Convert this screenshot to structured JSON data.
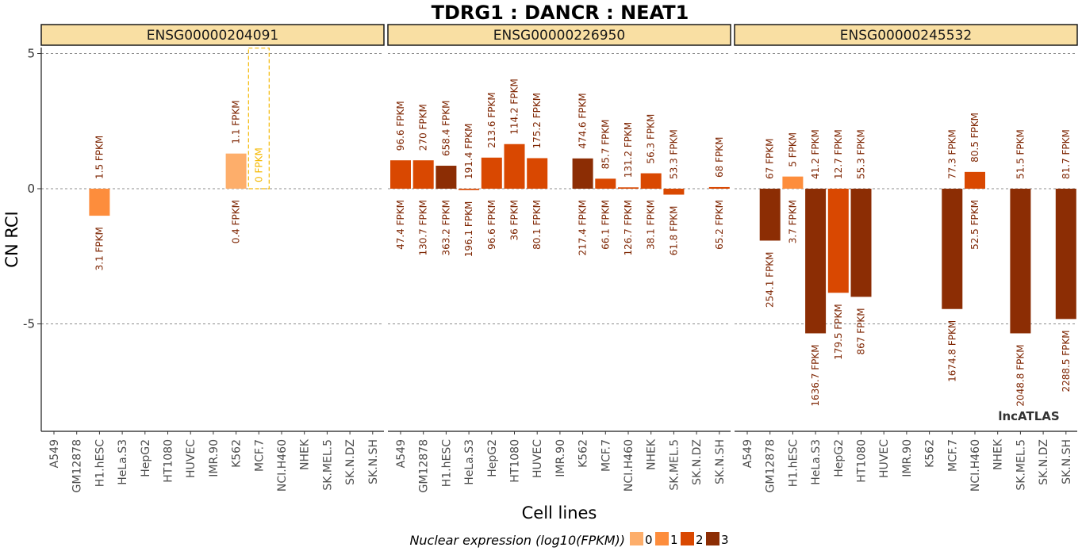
{
  "chart_data": {
    "type": "bar",
    "title": "TDRG1 : DANCR : NEAT1",
    "xlabel": "Cell lines",
    "ylabel": "CN RCI",
    "ylim": [
      -9,
      5.2
    ],
    "yticks": [
      5,
      0,
      -5
    ],
    "ytick_labels": [
      "5",
      "0",
      "-5"
    ],
    "grid_lines_at": [
      5,
      0,
      -5
    ],
    "categories": [
      "A549",
      "GM12878",
      "H1.hESC",
      "HeLa.S3",
      "HepG2",
      "HT1080",
      "HUVEC",
      "IMR.90",
      "K562",
      "MCF.7",
      "NCI.H460",
      "NHEK",
      "SK.MEL.5",
      "SK.N.DZ",
      "SK.N.SH"
    ],
    "legend": {
      "title": "Nuclear expression (log10(FPKM))",
      "position": "bottom",
      "levels": [
        {
          "label": "0",
          "color": "#fdae6b"
        },
        {
          "label": "1",
          "color": "#fd8d3c"
        },
        {
          "label": "2",
          "color": "#d94801"
        },
        {
          "label": "3",
          "color": "#8c2d04"
        }
      ]
    },
    "label_color": "#7f2704",
    "watermark": "lncATLAS",
    "panels": [
      {
        "name": "ENSG00000204091",
        "bars": [
          {
            "cell": "H1.hESC",
            "value": -1.0,
            "level": 1,
            "nuc_label": "1.5 FPKM",
            "cyt_label": "3.1 FPKM"
          },
          {
            "cell": "K562",
            "value": 1.3,
            "level": 0,
            "nuc_label": "1.1 FPKM",
            "cyt_label": "0.4 FPKM"
          },
          {
            "cell": "MCF.7",
            "value": 5.2,
            "level": 0,
            "nuc_label": "0 FPKM",
            "cyt_label": "",
            "outline_only": true
          }
        ]
      },
      {
        "name": "ENSG00000226950",
        "bars": [
          {
            "cell": "A549",
            "value": 1.05,
            "level": 2,
            "nuc_label": "96.6 FPKM",
            "cyt_label": "47.4 FPKM"
          },
          {
            "cell": "GM12878",
            "value": 1.05,
            "level": 2,
            "nuc_label": "270 FPKM",
            "cyt_label": "130.7 FPKM"
          },
          {
            "cell": "H1.hESC",
            "value": 0.85,
            "level": 3,
            "nuc_label": "658.4 FPKM",
            "cyt_label": "363.2 FPKM"
          },
          {
            "cell": "HeLa.S3",
            "value": -0.05,
            "level": 2,
            "nuc_label": "191.4 FPKM",
            "cyt_label": "196.1 FPKM"
          },
          {
            "cell": "HepG2",
            "value": 1.15,
            "level": 2,
            "nuc_label": "213.6 FPKM",
            "cyt_label": "96.6 FPKM"
          },
          {
            "cell": "HT1080",
            "value": 1.65,
            "level": 2,
            "nuc_label": "114.2 FPKM",
            "cyt_label": "36 FPKM"
          },
          {
            "cell": "HUVEC",
            "value": 1.13,
            "level": 2,
            "nuc_label": "175.2 FPKM",
            "cyt_label": "80.1 FPKM"
          },
          {
            "cell": "K562",
            "value": 1.12,
            "level": 3,
            "nuc_label": "474.6 FPKM",
            "cyt_label": "217.4 FPKM"
          },
          {
            "cell": "MCF.7",
            "value": 0.37,
            "level": 2,
            "nuc_label": "85.7 FPKM",
            "cyt_label": "66.1 FPKM"
          },
          {
            "cell": "NCI.H460",
            "value": 0.05,
            "level": 2,
            "nuc_label": "131.2 FPKM",
            "cyt_label": "126.7 FPKM"
          },
          {
            "cell": "NHEK",
            "value": 0.57,
            "level": 2,
            "nuc_label": "56.3 FPKM",
            "cyt_label": "38.1 FPKM"
          },
          {
            "cell": "SK.MEL.5",
            "value": -0.22,
            "level": 2,
            "nuc_label": "53.3 FPKM",
            "cyt_label": "61.8 FPKM"
          },
          {
            "cell": "SK.N.SH",
            "value": 0.06,
            "level": 2,
            "nuc_label": "68 FPKM",
            "cyt_label": "65.2 FPKM"
          }
        ]
      },
      {
        "name": "ENSG00000245532",
        "bars": [
          {
            "cell": "GM12878",
            "value": -1.92,
            "level": 3,
            "nuc_label": "67 FPKM",
            "cyt_label": "254.1 FPKM"
          },
          {
            "cell": "H1.hESC",
            "value": 0.45,
            "level": 1,
            "nuc_label": "5 FPKM",
            "cyt_label": "3.7 FPKM"
          },
          {
            "cell": "HeLa.S3",
            "value": -5.35,
            "level": 3,
            "nuc_label": "41.2 FPKM",
            "cyt_label": "1636.7 FPKM"
          },
          {
            "cell": "HepG2",
            "value": -3.85,
            "level": 2,
            "nuc_label": "12.7 FPKM",
            "cyt_label": "179.5 FPKM"
          },
          {
            "cell": "HT1080",
            "value": -4.0,
            "level": 3,
            "nuc_label": "55.3 FPKM",
            "cyt_label": "867 FPKM"
          },
          {
            "cell": "MCF.7",
            "value": -4.45,
            "level": 3,
            "nuc_label": "77.3 FPKM",
            "cyt_label": "1674.8 FPKM"
          },
          {
            "cell": "NCI.H460",
            "value": 0.62,
            "level": 2,
            "nuc_label": "80.5 FPKM",
            "cyt_label": "52.5 FPKM"
          },
          {
            "cell": "SK.MEL.5",
            "value": -5.35,
            "level": 3,
            "nuc_label": "51.5 FPKM",
            "cyt_label": "2048.8 FPKM"
          },
          {
            "cell": "SK.N.SH",
            "value": -4.82,
            "level": 3,
            "nuc_label": "81.7 FPKM",
            "cyt_label": "2288.5 FPKM"
          }
        ]
      }
    ]
  }
}
